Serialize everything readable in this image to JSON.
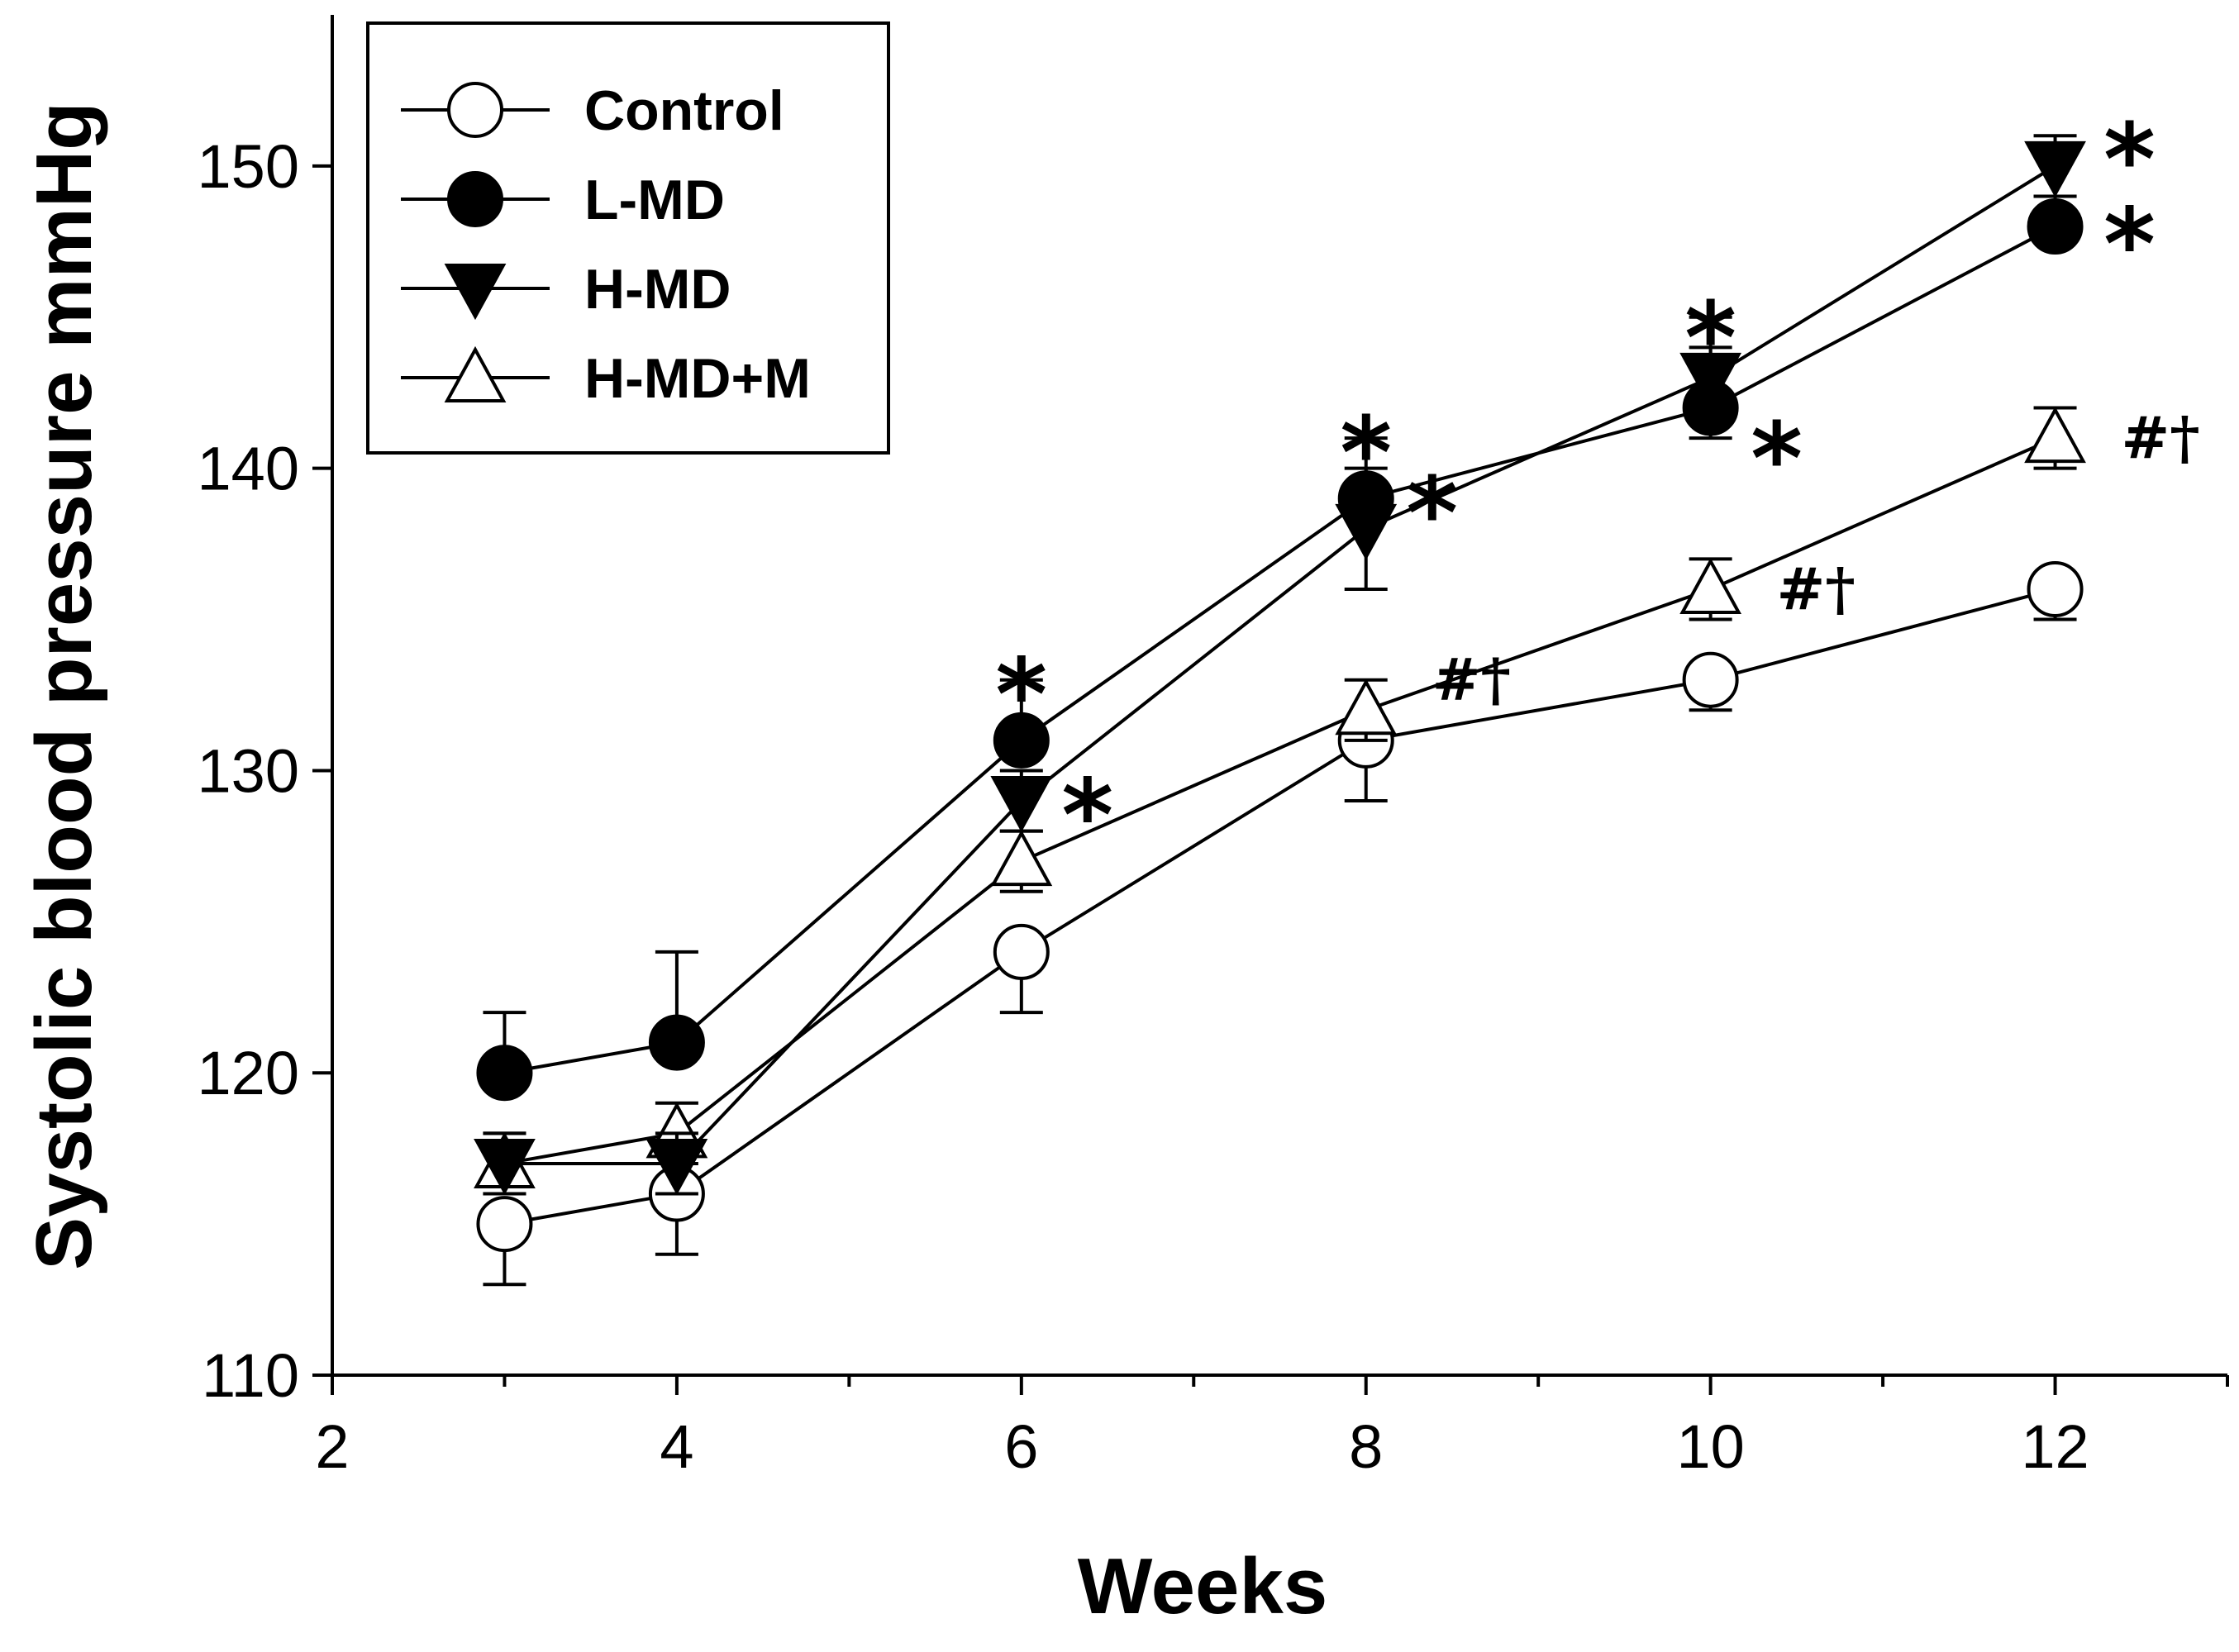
{
  "chart_data": {
    "type": "line",
    "title": "",
    "xlabel": "Weeks",
    "ylabel": "Systolic blood pressure mmHg",
    "xlim": [
      2,
      13
    ],
    "ylim": [
      110,
      155
    ],
    "xticks": [
      2,
      4,
      6,
      8,
      10,
      12
    ],
    "yticks": [
      110,
      120,
      130,
      140,
      150
    ],
    "x": [
      3,
      4,
      6,
      8,
      10,
      12
    ],
    "legend_position": "top-left",
    "series": [
      {
        "name": "Control",
        "marker": "circle-open",
        "values": [
          115,
          116,
          124,
          131,
          133,
          136
        ],
        "errors": [
          2,
          2,
          2,
          2,
          1,
          1
        ],
        "error_dir": "down"
      },
      {
        "name": "L-MD",
        "marker": "circle-filled",
        "values": [
          120,
          121,
          131,
          139,
          142,
          148
        ],
        "errors": [
          2,
          3,
          2,
          2,
          2,
          1
        ],
        "error_dir": "up"
      },
      {
        "name": "H-MD",
        "marker": "triangle-down-filled",
        "values": [
          117,
          117,
          129,
          138,
          143,
          150
        ],
        "errors": [
          1,
          1,
          1,
          2,
          2,
          1
        ],
        "error_dir": "both"
      },
      {
        "name": "H-MD+M",
        "marker": "triangle-up-open",
        "values": [
          117,
          118,
          127,
          132,
          136,
          141
        ],
        "errors": [
          1,
          1,
          1,
          1,
          1,
          1
        ],
        "error_dir": "both"
      }
    ],
    "annotations": [
      {
        "x": 6,
        "y": 133.5,
        "text": "*",
        "kind": "star",
        "dx": 0
      },
      {
        "x": 6,
        "y": 129.5,
        "text": "*",
        "kind": "star",
        "dx": 80
      },
      {
        "x": 8,
        "y": 141.5,
        "text": "*",
        "kind": "star",
        "dx": 0
      },
      {
        "x": 8,
        "y": 139.5,
        "text": "*",
        "kind": "star",
        "dx": 80
      },
      {
        "x": 8,
        "y": 133,
        "text": "#†",
        "kind": "hashdag",
        "dx": 85
      },
      {
        "x": 10,
        "y": 145.3,
        "text": "*",
        "kind": "star",
        "dx": 0
      },
      {
        "x": 10,
        "y": 141.3,
        "text": "*",
        "kind": "star",
        "dx": 80
      },
      {
        "x": 10,
        "y": 136,
        "text": "#†",
        "kind": "hashdag",
        "dx": 85
      },
      {
        "x": 12,
        "y": 151.2,
        "text": "*",
        "kind": "star",
        "dx": 90
      },
      {
        "x": 12,
        "y": 148.4,
        "text": "*",
        "kind": "star",
        "dx": 90
      },
      {
        "x": 12,
        "y": 141,
        "text": "#†",
        "kind": "hashdag",
        "dx": 85
      }
    ]
  }
}
